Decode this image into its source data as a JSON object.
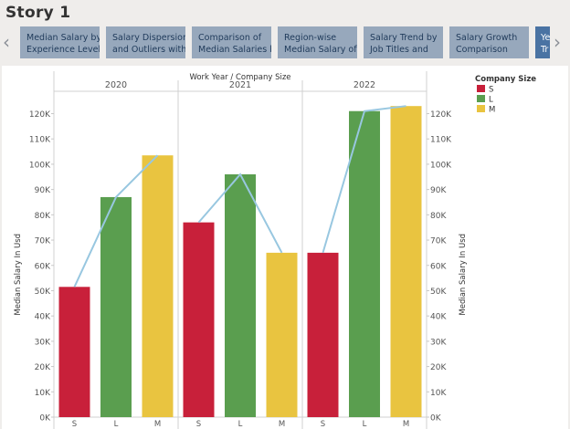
{
  "story": {
    "title": "Story 1",
    "prev_icon": "chevron-left-icon",
    "next_icon": "chevron-right-icon"
  },
  "tabs": [
    {
      "line1": "Median Salary by",
      "line2": "Experience Level"
    },
    {
      "line1": "Salary Dispersion",
      "line2": "and Outliers with"
    },
    {
      "line1": "Comparison of",
      "line2": "Median Salaries by"
    },
    {
      "line1": "Region-wise",
      "line2": "Median Salary of"
    },
    {
      "line1": "Salary Trend by",
      "line2": "Job Titles and"
    },
    {
      "line1": "Salary Growth",
      "line2": "Comparison"
    },
    {
      "line1": "Ye",
      "line2": "Tr"
    }
  ],
  "colors": {
    "S": "#c8203a",
    "L": "#5a9e4f",
    "M": "#e9c440",
    "line": "#98c7e0"
  },
  "chart_data": {
    "type": "bar",
    "title": "Work Year / Company Size",
    "ylabel": "Median Salary In Usd",
    "ylim": [
      0,
      125000
    ],
    "y_ticks": [
      "0K",
      "10K",
      "20K",
      "30K",
      "40K",
      "50K",
      "60K",
      "70K",
      "80K",
      "90K",
      "100K",
      "110K",
      "120K"
    ],
    "groups": [
      {
        "year": "2020",
        "bars": [
          {
            "size": "S",
            "value": 51500
          },
          {
            "size": "L",
            "value": 87000
          },
          {
            "size": "M",
            "value": 103500
          }
        ]
      },
      {
        "year": "2021",
        "bars": [
          {
            "size": "S",
            "value": 77000
          },
          {
            "size": "L",
            "value": 96000
          },
          {
            "size": "M",
            "value": 65000
          }
        ]
      },
      {
        "year": "2022",
        "bars": [
          {
            "size": "S",
            "value": 65000
          },
          {
            "size": "L",
            "value": 121000
          },
          {
            "size": "M",
            "value": 123000
          }
        ]
      }
    ],
    "legend": {
      "title": "Company Size",
      "items": [
        "S",
        "L",
        "M"
      ],
      "position": "top-right"
    },
    "overlay_line": "median per group connected across sizes",
    "grid": false
  }
}
